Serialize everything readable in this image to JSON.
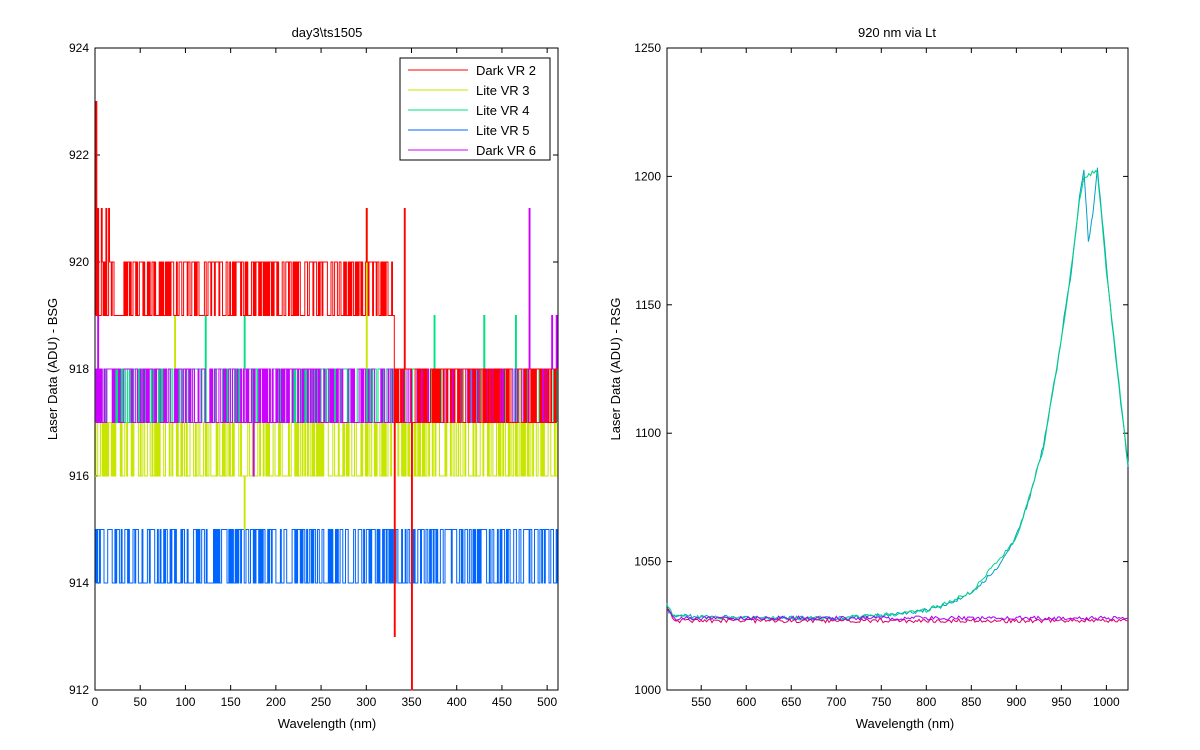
{
  "chart_data": [
    {
      "type": "line",
      "title": "day3\\ts1505",
      "xlabel": "Wavelength (nm)",
      "ylabel": "Laser Data (ADU) - BSG",
      "xlim": [
        0,
        512
      ],
      "ylim": [
        912,
        924
      ],
      "x_ticks": [
        0,
        50,
        100,
        150,
        200,
        250,
        300,
        350,
        400,
        450,
        500
      ],
      "y_ticks": [
        912,
        914,
        916,
        918,
        920,
        922,
        924
      ],
      "grid": false,
      "legend_position": "top-right",
      "x_range": [
        0,
        511
      ],
      "series": [
        {
          "name": "Dark VR 2",
          "color": "#ff0000",
          "levels": [
            919,
            920
          ],
          "segments": [
            [
              0,
              332,
              919,
              920
            ],
            [
              332,
              512,
              917,
              918
            ]
          ],
          "spikes": [
            [
              1,
              923
            ],
            [
              3,
              921
            ],
            [
              7,
              921
            ],
            [
              12,
              921
            ],
            [
              15,
              921
            ],
            [
              300,
              921
            ],
            [
              342,
              921
            ],
            [
              331,
              913
            ],
            [
              350,
              912
            ]
          ]
        },
        {
          "name": "Lite VR 3",
          "color": "#c8e600",
          "segments": [
            [
              0,
              512,
              916,
              917
            ]
          ],
          "spikes": [
            [
              88,
              919
            ],
            [
              165,
              915
            ],
            [
              300,
              921
            ],
            [
              340,
              918
            ],
            [
              480,
              916
            ]
          ]
        },
        {
          "name": "Lite VR 4",
          "color": "#00e080",
          "segments": [
            [
              0,
              512,
              917,
              918
            ]
          ],
          "spikes": [
            [
              122,
              919
            ],
            [
              165,
              919
            ],
            [
              375,
              919
            ],
            [
              430,
              919
            ],
            [
              465,
              919
            ]
          ]
        },
        {
          "name": "Lite VR 5",
          "color": "#0064ff",
          "segments": [
            [
              0,
              512,
              914,
              915
            ]
          ],
          "spikes": [
            [
              350,
              914
            ],
            [
              430,
              915
            ],
            [
              500,
              915
            ]
          ]
        },
        {
          "name": "Dark VR 6",
          "color": "#cc00ff",
          "segments": [
            [
              0,
              512,
              917,
              918
            ]
          ],
          "spikes": [
            [
              3,
              920
            ],
            [
              175,
              916
            ],
            [
              480,
              921
            ],
            [
              505,
              919
            ],
            [
              510,
              919
            ]
          ]
        }
      ]
    },
    {
      "type": "line",
      "title": "920 nm via Lt",
      "xlabel": "Wavelength (nm)",
      "ylabel": "Laser Data (ADU) - RSG",
      "xlim": [
        512,
        1024
      ],
      "ylim": [
        1000,
        1250
      ],
      "x_ticks": [
        550,
        600,
        650,
        700,
        750,
        800,
        850,
        900,
        950,
        1000
      ],
      "y_ticks": [
        1000,
        1050,
        1100,
        1150,
        1200,
        1250
      ],
      "grid": false,
      "series": [
        {
          "color": "#00a0c8",
          "points": [
            [
              512,
              1034
            ],
            [
              514,
              1030
            ],
            [
              520,
              1029
            ],
            [
              560,
              1028.5
            ],
            [
              600,
              1028
            ],
            [
              650,
              1028
            ],
            [
              700,
              1028
            ],
            [
              750,
              1029
            ],
            [
              780,
              1030
            ],
            [
              800,
              1031
            ],
            [
              820,
              1033
            ],
            [
              840,
              1036
            ],
            [
              860,
              1041
            ],
            [
              880,
              1048
            ],
            [
              900,
              1060
            ],
            [
              915,
              1075
            ],
            [
              930,
              1095
            ],
            [
              945,
              1125
            ],
            [
              955,
              1150
            ],
            [
              960,
              1160
            ],
            [
              965,
              1175
            ],
            [
              970,
              1192
            ],
            [
              975,
              1202
            ],
            [
              980,
              1175
            ],
            [
              985,
              1185
            ],
            [
              990,
              1203
            ],
            [
              995,
              1185
            ],
            [
              1000,
              1165
            ],
            [
              1010,
              1130
            ],
            [
              1020,
              1100
            ],
            [
              1024,
              1087
            ]
          ]
        },
        {
          "color": "#00d080",
          "points": [
            [
              512,
              1033
            ],
            [
              520,
              1028.5
            ],
            [
              600,
              1028
            ],
            [
              700,
              1028
            ],
            [
              750,
              1029
            ],
            [
              800,
              1031
            ],
            [
              850,
              1038
            ],
            [
              900,
              1059
            ],
            [
              930,
              1094
            ],
            [
              955,
              1148
            ],
            [
              970,
              1190
            ],
            [
              975,
              1200
            ],
            [
              990,
              1202
            ],
            [
              1000,
              1163
            ],
            [
              1024,
              1088
            ]
          ]
        },
        {
          "color": "#e00060",
          "points": [
            [
              512,
              1032
            ],
            [
              520,
              1027
            ],
            [
              1024,
              1027
            ]
          ]
        },
        {
          "color": "#a000ff",
          "points": [
            [
              512,
              1031
            ],
            [
              520,
              1028
            ],
            [
              1024,
              1028
            ]
          ]
        }
      ]
    }
  ]
}
